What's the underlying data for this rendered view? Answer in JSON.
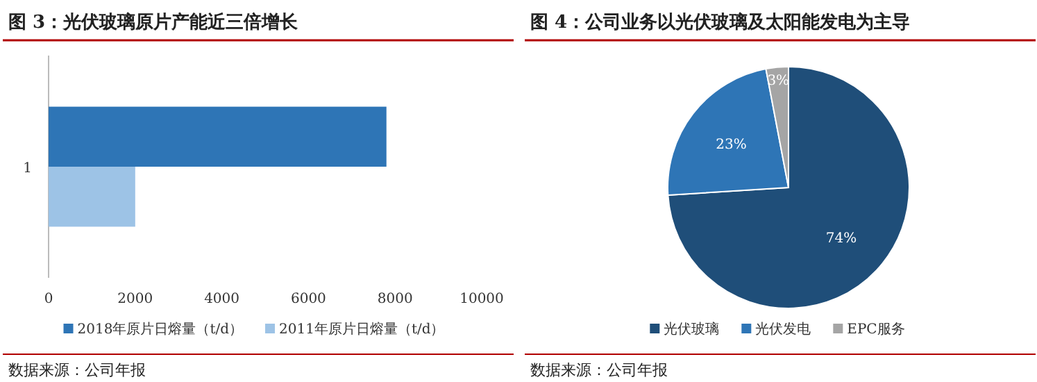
{
  "chart_data": [
    {
      "type": "bar",
      "orientation": "horizontal",
      "title": "图 3：光伏玻璃原片产能近三倍增长",
      "categories": [
        "1"
      ],
      "series": [
        {
          "name": "2018年原片日熔量（t/d）",
          "color": "#2e75b6",
          "values": [
            7800
          ]
        },
        {
          "name": "2011年原片日熔量（t/d）",
          "color": "#9dc3e6",
          "values": [
            2000
          ]
        }
      ],
      "xlim": [
        0,
        10000
      ],
      "xticks": [
        0,
        2000,
        4000,
        6000,
        8000,
        10000
      ],
      "legend": "bottom",
      "annotations": [
        "数据来源：公司年报"
      ]
    },
    {
      "type": "pie",
      "title": "图 4：公司业务以光伏玻璃及太阳能发电为主导",
      "categories": [
        "光伏玻璃",
        "光伏发电",
        "EPC服务"
      ],
      "values": [
        74,
        23,
        3
      ],
      "colors": [
        "#1f4e79",
        "#2e75b6",
        "#a5a5a5"
      ],
      "value_labels": [
        "74%",
        "23%",
        "3%"
      ],
      "legend": "bottom",
      "annotations": [
        "数据来源：公司年报"
      ]
    }
  ]
}
